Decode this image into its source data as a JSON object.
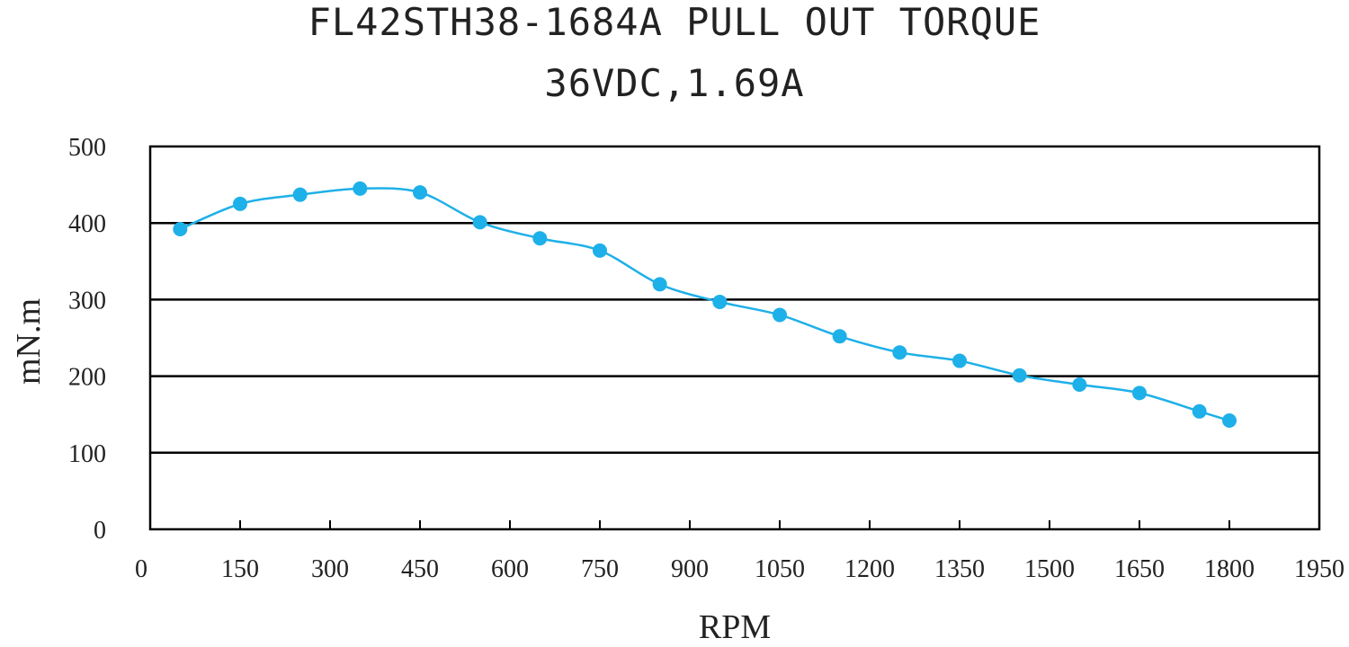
{
  "chart_data": {
    "type": "line",
    "title": "FL42STH38-1684A PULL OUT TORQUE",
    "subtitle": "36VDC,1.69A",
    "xlabel": "RPM",
    "ylabel": "mN.m",
    "xlim": [
      0,
      1950
    ],
    "ylim": [
      0,
      500
    ],
    "xticks": [
      0,
      150,
      300,
      450,
      600,
      750,
      900,
      1050,
      1200,
      1350,
      1500,
      1650,
      1800,
      1950
    ],
    "yticks": [
      0,
      100,
      200,
      300,
      400,
      500
    ],
    "grid": "horizontal",
    "line_color": "#1EB0E8",
    "series": [
      {
        "x": [
          50,
          150,
          250,
          350,
          450,
          550,
          650,
          750,
          850,
          950,
          1050,
          1150,
          1250,
          1350,
          1450,
          1550,
          1650,
          1750,
          1800
        ],
        "y": [
          392,
          425,
          437,
          445,
          440,
          401,
          380,
          364,
          320,
          297,
          280,
          252,
          231,
          220,
          201,
          189,
          178,
          154,
          142
        ]
      }
    ]
  }
}
